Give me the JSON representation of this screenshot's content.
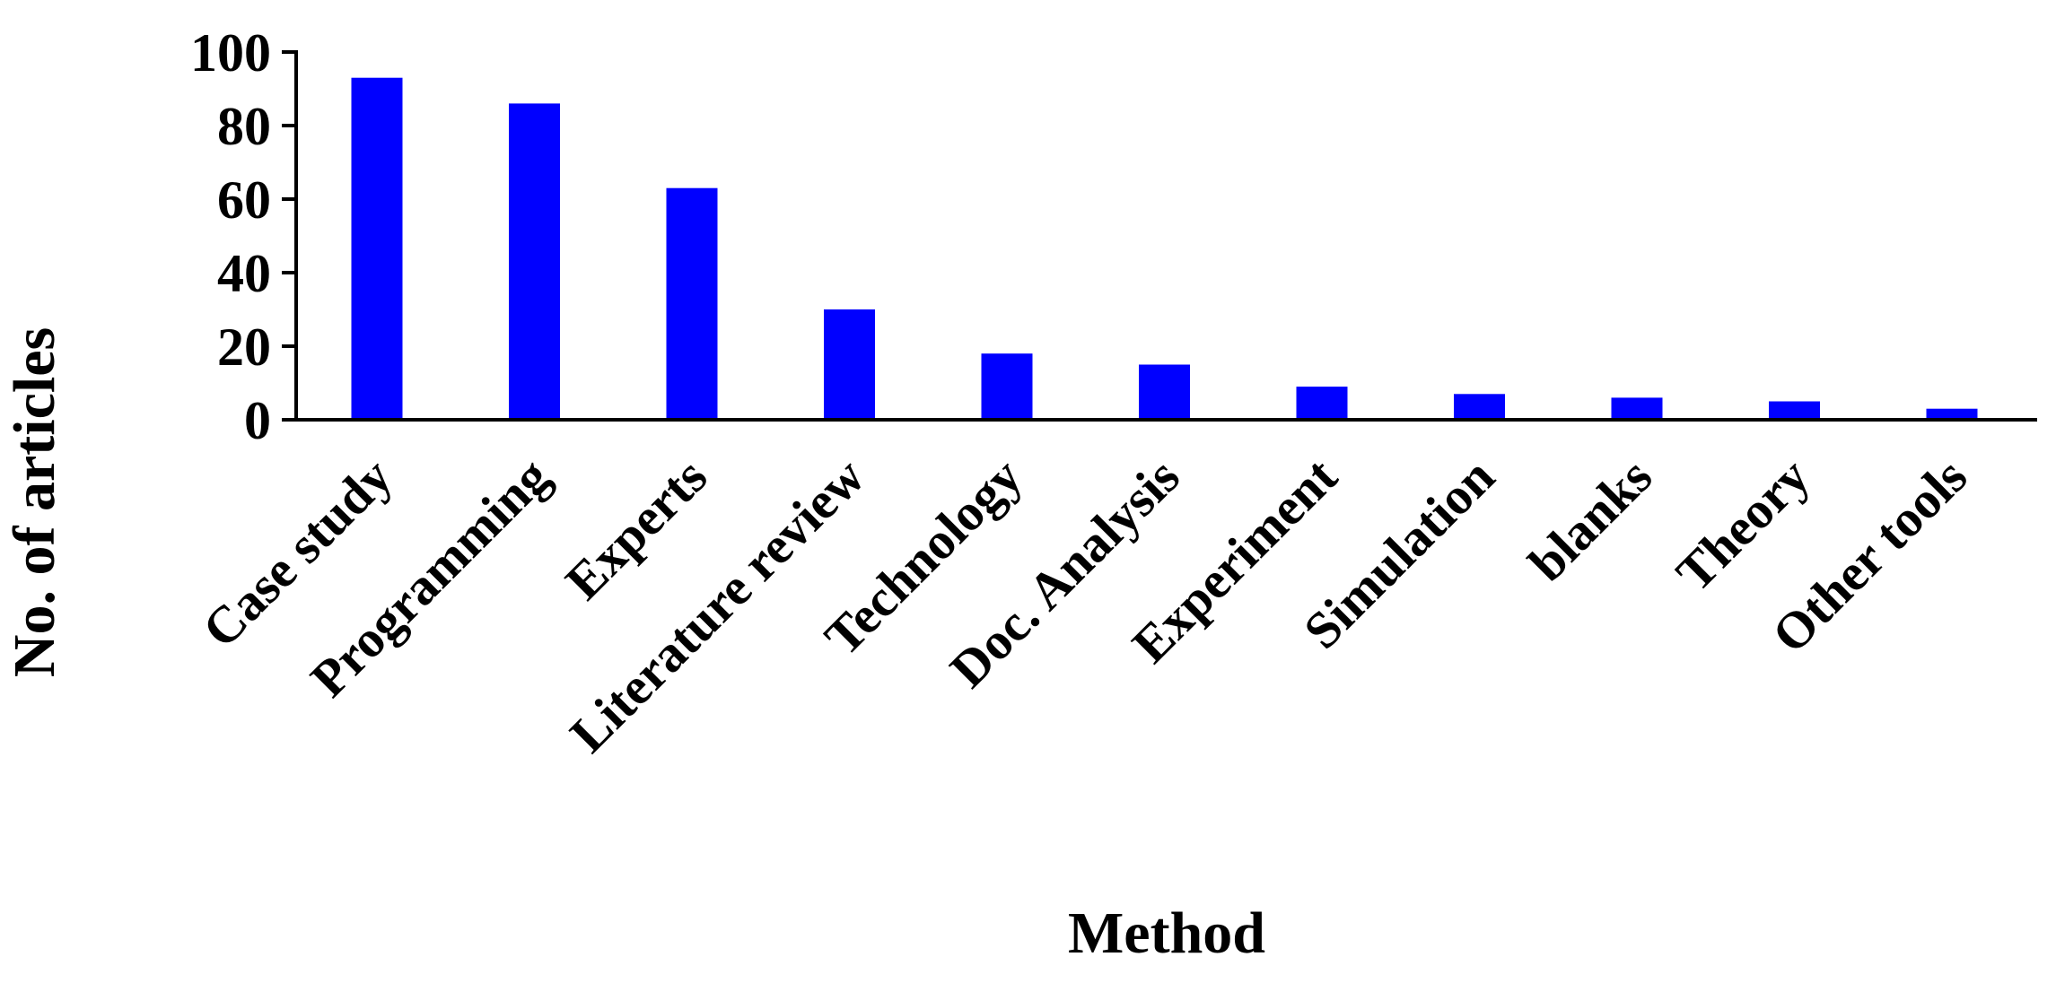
{
  "chart_data": {
    "type": "bar",
    "title": "",
    "xlabel": "Method",
    "ylabel": "No. of articles",
    "categories": [
      "Case study",
      "Programming",
      "Experts",
      "Literature review",
      "Technology",
      "Doc. Analysis",
      "Experiment",
      "Simulation",
      "blanks",
      "Theory",
      "Other tools"
    ],
    "values": [
      93,
      86,
      63,
      30,
      18,
      15,
      9,
      7,
      6,
      5,
      3
    ],
    "ylim": [
      0,
      100
    ],
    "yticks": [
      "0",
      "20",
      "40",
      "60",
      "80",
      "100"
    ],
    "colors": {
      "bar": "#0000FF",
      "axis": "#000000"
    },
    "grid": false,
    "legend": "none"
  }
}
